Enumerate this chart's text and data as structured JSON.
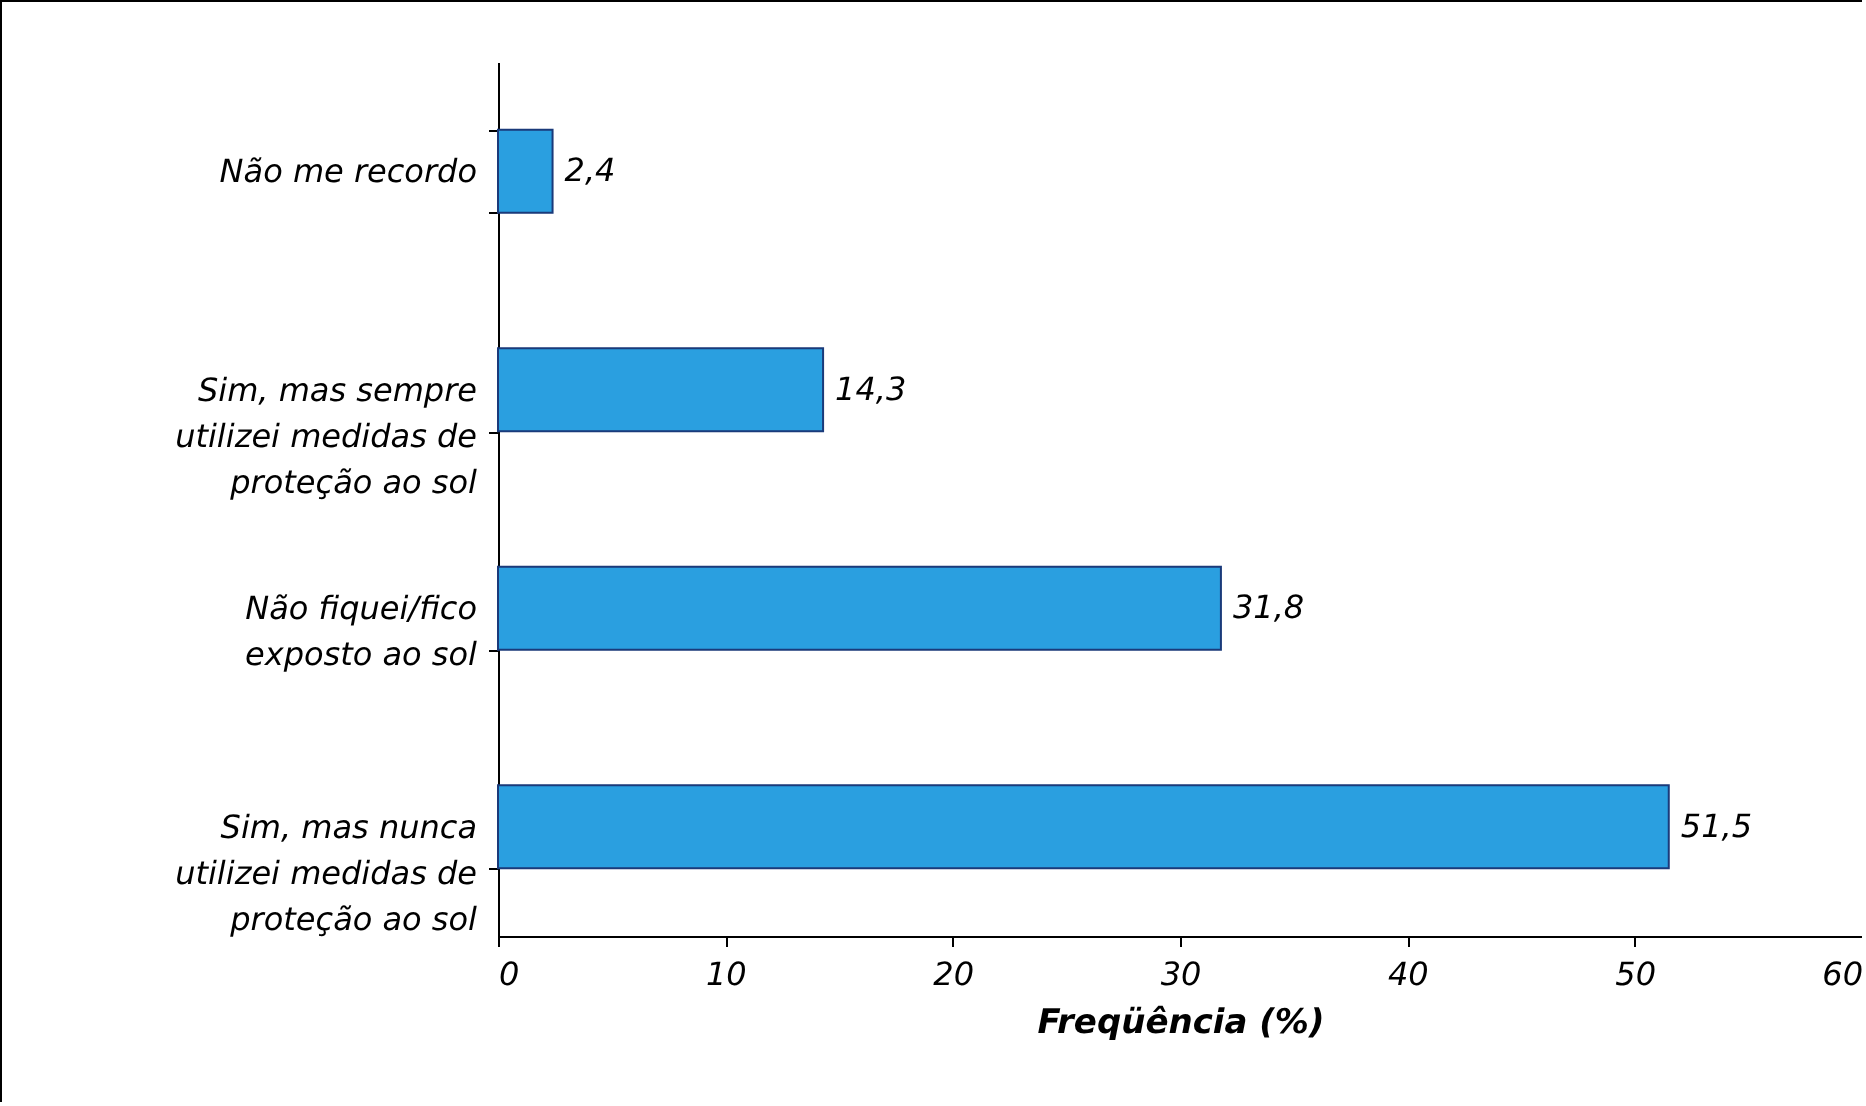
{
  "chart_data": {
    "type": "bar",
    "orientation": "horizontal",
    "xlabel": "Freqüência (%)",
    "categories": [
      "Não me recordo",
      "Sim, mas sempre utilizei medidas de proteção ao sol",
      "Não fiquei/fico exposto ao sol",
      "Sim, mas nunca utilizei medidas de proteção ao sol"
    ],
    "values": [
      2.4,
      14.3,
      31.8,
      51.5
    ],
    "value_labels": [
      "2,4",
      "14,3",
      "31,8",
      "51,5"
    ],
    "color": "#2a9fe0",
    "xlim": [
      0,
      60
    ],
    "xticks": [
      0,
      10,
      20,
      30,
      40,
      50,
      60
    ],
    "grid": false
  }
}
